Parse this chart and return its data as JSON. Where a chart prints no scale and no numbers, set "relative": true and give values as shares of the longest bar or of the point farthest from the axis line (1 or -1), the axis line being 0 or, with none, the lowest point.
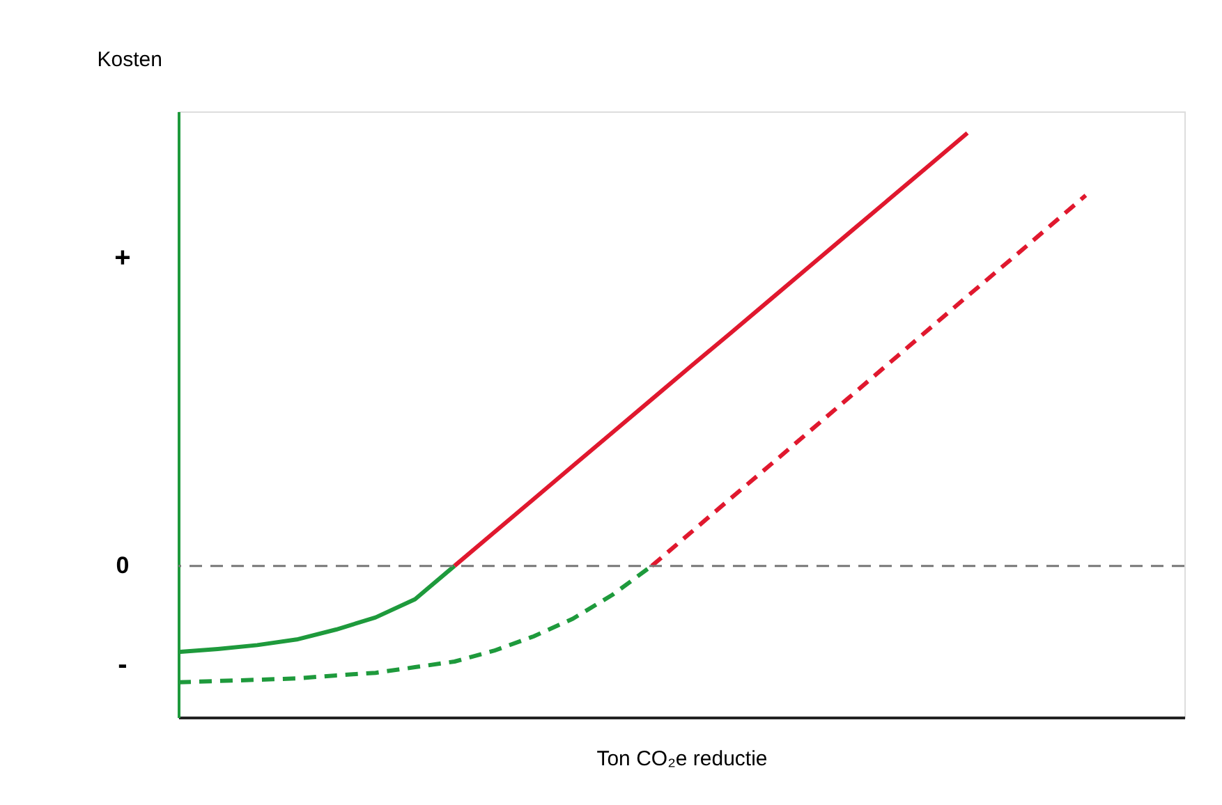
{
  "chart_data": {
    "type": "line",
    "relative": true,
    "ylabel": "Kosten",
    "xlabel": "Ton CO₂e reductie",
    "categories": [
      null,
      null,
      null,
      null,
      null,
      null,
      null,
      null,
      null,
      null,
      null,
      null,
      null,
      null,
      null,
      null,
      null,
      null,
      null,
      null,
      null,
      null,
      null,
      null
    ],
    "series": [
      {
        "color": "#1e9a3c",
        "line_style": "solid",
        "values": [
          -0.199,
          -0.192,
          -0.183,
          -0.17,
          -0.147,
          -0.119,
          -0.077,
          0,
          null,
          null,
          null,
          null,
          null,
          null,
          null,
          null,
          null,
          null,
          null,
          null,
          null,
          null,
          null,
          null
        ]
      },
      {
        "color": "#e0182e",
        "line_style": "solid",
        "values": [
          null,
          null,
          null,
          null,
          null,
          null,
          null,
          0,
          0.077,
          0.154,
          0.231,
          0.308,
          0.385,
          0.462,
          0.538,
          0.615,
          0.692,
          0.769,
          0.846,
          0.923,
          1,
          null,
          null,
          null
        ]
      },
      {
        "color": "#1e9a3c",
        "line_style": "dashed",
        "values": [
          -0.269,
          -0.266,
          -0.263,
          -0.26,
          -0.253,
          -0.247,
          -0.234,
          -0.221,
          -0.196,
          -0.163,
          -0.122,
          -0.067,
          0,
          null,
          null,
          null,
          null,
          null,
          null,
          null,
          null,
          null,
          null,
          null
        ]
      },
      {
        "color": "#e0182e",
        "line_style": "dashed",
        "values": [
          null,
          null,
          null,
          null,
          null,
          null,
          null,
          null,
          null,
          null,
          null,
          null,
          0,
          0.078,
          0.156,
          0.233,
          0.311,
          0.389,
          0.467,
          0.545,
          0.623,
          0.7,
          0.778,
          0.856
        ]
      }
    ],
    "ref_lines": [
      {
        "axis": "y",
        "value": 0,
        "label": "0",
        "color": "#777777",
        "line_style": "dashed"
      }
    ],
    "annotations": [
      "+",
      "-"
    ],
    "grid": false,
    "marker": "none"
  }
}
